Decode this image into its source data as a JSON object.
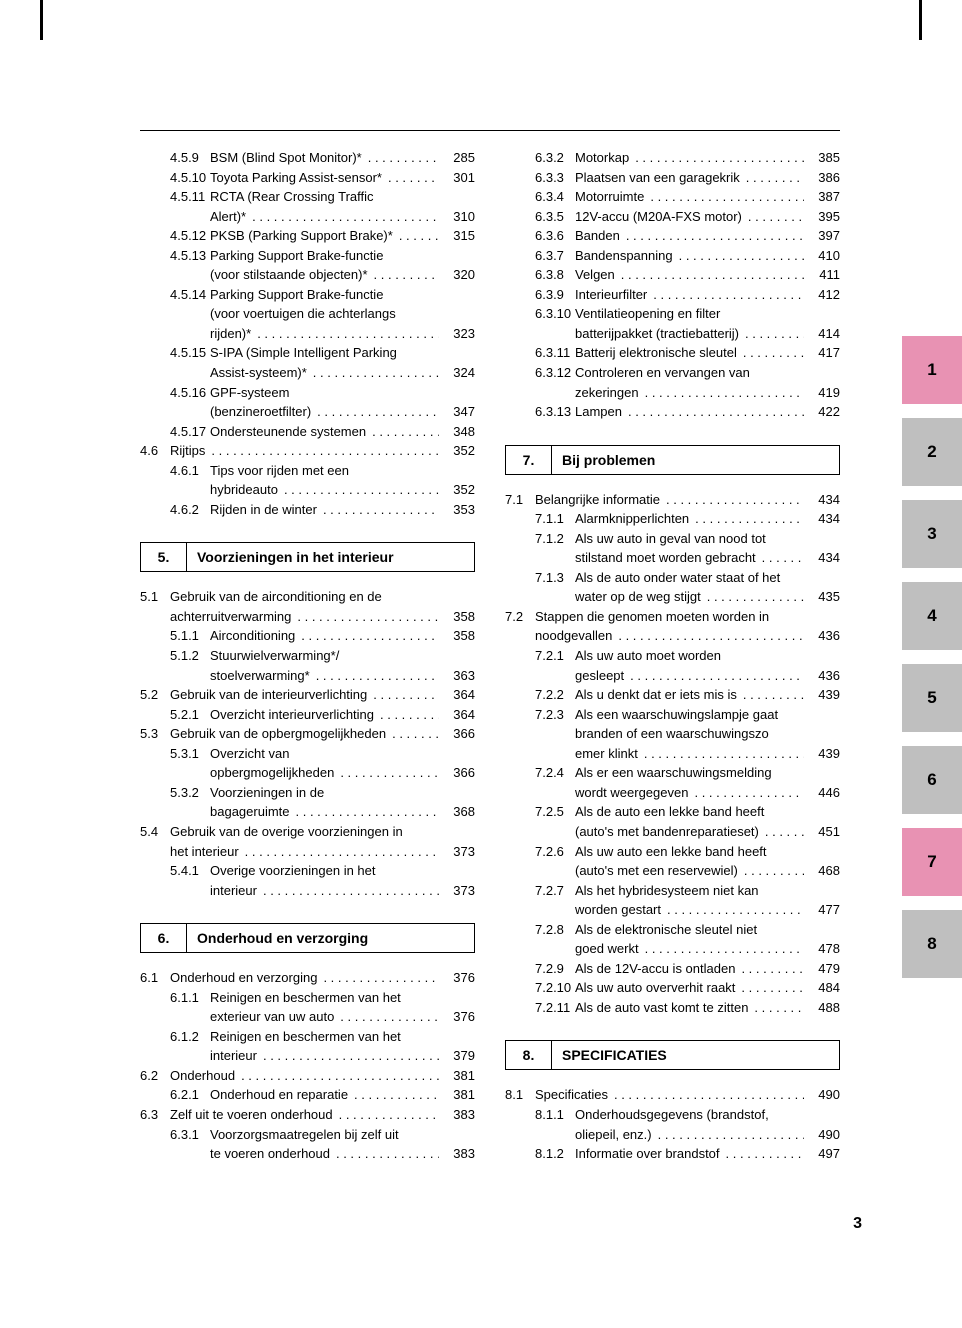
{
  "page_number": "3",
  "tabs": [
    {
      "n": "1",
      "c": "pink"
    },
    {
      "n": "2",
      "c": "gray"
    },
    {
      "n": "3",
      "c": "gray"
    },
    {
      "n": "4",
      "c": "gray"
    },
    {
      "n": "5",
      "c": "gray"
    },
    {
      "n": "6",
      "c": "gray"
    },
    {
      "n": "7",
      "c": "pink"
    },
    {
      "n": "8",
      "c": "gray"
    }
  ],
  "left": [
    {
      "t": "l3",
      "n": "4.5.9",
      "x": "BSM (Blind Spot Monitor)*",
      "p": "285"
    },
    {
      "t": "l3",
      "n": "4.5.10",
      "x": "Toyota Parking Assist-sensor*",
      "p": "301"
    },
    {
      "t": "l3",
      "n": "4.5.11",
      "x": "RCTA (Rear Crossing Traffic",
      "p": ""
    },
    {
      "t": "cont",
      "x": "Alert)*",
      "p": "310"
    },
    {
      "t": "l3",
      "n": "4.5.12",
      "x": "PKSB (Parking Support Brake)*",
      "p": "315"
    },
    {
      "t": "l3",
      "n": "4.5.13",
      "x": "Parking Support Brake-functie",
      "p": ""
    },
    {
      "t": "cont",
      "x": "(voor stilstaande objecten)*",
      "p": "320"
    },
    {
      "t": "l3",
      "n": "4.5.14",
      "x": "Parking Support Brake-functie",
      "p": ""
    },
    {
      "t": "cont",
      "x": "(voor voertuigen die achterlangs",
      "p": ""
    },
    {
      "t": "cont",
      "x": "rijden)*",
      "p": "323"
    },
    {
      "t": "l3",
      "n": "4.5.15",
      "x": "S-IPA (Simple Intelligent Parking",
      "p": ""
    },
    {
      "t": "cont",
      "x": "Assist-systeem)*",
      "p": "324"
    },
    {
      "t": "l3",
      "n": "4.5.16",
      "x": "GPF-systeem",
      "p": ""
    },
    {
      "t": "cont",
      "x": "(benzineroetfilter)",
      "p": "347"
    },
    {
      "t": "l3",
      "n": "4.5.17",
      "x": "Ondersteunende systemen",
      "p": "348"
    },
    {
      "t": "l1",
      "n": "4.6",
      "x": "Rijtips",
      "p": "352"
    },
    {
      "t": "l3",
      "n": "4.6.1",
      "x": "Tips voor rijden met een",
      "p": ""
    },
    {
      "t": "cont",
      "x": "hybrideauto",
      "p": "352"
    },
    {
      "t": "l3",
      "n": "4.6.2",
      "x": "Rijden in de winter",
      "p": "353"
    },
    {
      "t": "hdr",
      "n": "5.",
      "x": "Voorzieningen in het interieur"
    },
    {
      "t": "l1",
      "n": "5.1",
      "x": "Gebruik van de airconditioning en de",
      "p": ""
    },
    {
      "t": "contL1",
      "x": "achterruitverwarming",
      "p": "358"
    },
    {
      "t": "l3",
      "n": "5.1.1",
      "x": "Airconditioning",
      "p": "358"
    },
    {
      "t": "l3",
      "n": "5.1.2",
      "x": "Stuurwielverwarming*/",
      "p": ""
    },
    {
      "t": "cont",
      "x": "stoelverwarming*",
      "p": "363"
    },
    {
      "t": "l1",
      "n": "5.2",
      "x": "Gebruik van de interieurverlichting",
      "p": "364"
    },
    {
      "t": "l3",
      "n": "5.2.1",
      "x": "Overzicht interieurverlichting",
      "p": "364"
    },
    {
      "t": "l1",
      "n": "5.3",
      "x": "Gebruik van de opbergmogelijkheden",
      "p": "366"
    },
    {
      "t": "l3",
      "n": "5.3.1",
      "x": "Overzicht van",
      "p": ""
    },
    {
      "t": "cont",
      "x": "opbergmogelijkheden",
      "p": "366"
    },
    {
      "t": "l3",
      "n": "5.3.2",
      "x": "Voorzieningen in de",
      "p": ""
    },
    {
      "t": "cont",
      "x": "bagageruimte",
      "p": "368"
    },
    {
      "t": "l1",
      "n": "5.4",
      "x": "Gebruik van de overige voorzieningen in",
      "p": ""
    },
    {
      "t": "contL1",
      "x": "het interieur",
      "p": "373"
    },
    {
      "t": "l3",
      "n": "5.4.1",
      "x": "Overige voorzieningen in het",
      "p": ""
    },
    {
      "t": "cont",
      "x": "interieur",
      "p": "373"
    },
    {
      "t": "hdr",
      "n": "6.",
      "x": "Onderhoud en verzorging"
    },
    {
      "t": "l1",
      "n": "6.1",
      "x": "Onderhoud en verzorging",
      "p": "376"
    },
    {
      "t": "l3",
      "n": "6.1.1",
      "x": "Reinigen en beschermen van het",
      "p": ""
    },
    {
      "t": "cont",
      "x": "exterieur van uw auto",
      "p": "376"
    },
    {
      "t": "l3",
      "n": "6.1.2",
      "x": "Reinigen en beschermen van het",
      "p": ""
    },
    {
      "t": "cont",
      "x": "interieur",
      "p": "379"
    },
    {
      "t": "l1",
      "n": "6.2",
      "x": "Onderhoud",
      "p": "381"
    },
    {
      "t": "l3",
      "n": "6.2.1",
      "x": "Onderhoud en reparatie",
      "p": "381"
    },
    {
      "t": "l1",
      "n": "6.3",
      "x": "Zelf uit te voeren onderhoud",
      "p": "383"
    },
    {
      "t": "l3",
      "n": "6.3.1",
      "x": "Voorzorgsmaatregelen bij zelf uit",
      "p": ""
    },
    {
      "t": "cont",
      "x": "te voeren onderhoud",
      "p": "383"
    }
  ],
  "right": [
    {
      "t": "l3",
      "n": "6.3.2",
      "x": "Motorkap",
      "p": "385"
    },
    {
      "t": "l3",
      "n": "6.3.3",
      "x": "Plaatsen van een garagekrik",
      "p": "386"
    },
    {
      "t": "l3",
      "n": "6.3.4",
      "x": "Motorruimte",
      "p": "387"
    },
    {
      "t": "l3",
      "n": "6.3.5",
      "x": "12V-accu (M20A-FXS motor)",
      "p": "395"
    },
    {
      "t": "l3",
      "n": "6.3.6",
      "x": "Banden",
      "p": "397"
    },
    {
      "t": "l3",
      "n": "6.3.7",
      "x": "Bandenspanning",
      "p": "410"
    },
    {
      "t": "l3",
      "n": "6.3.8",
      "x": "Velgen",
      "p": "411"
    },
    {
      "t": "l3",
      "n": "6.3.9",
      "x": "Interieurfilter",
      "p": "412"
    },
    {
      "t": "l3",
      "n": "6.3.10",
      "x": "Ventilatieopening en filter",
      "p": ""
    },
    {
      "t": "cont",
      "x": "batterijpakket (tractiebatterij)",
      "p": "414"
    },
    {
      "t": "l3",
      "n": "6.3.11",
      "x": "Batterij elektronische sleutel",
      "p": "417"
    },
    {
      "t": "l3",
      "n": "6.3.12",
      "x": "Controleren en vervangen van",
      "p": ""
    },
    {
      "t": "cont",
      "x": "zekeringen",
      "p": "419"
    },
    {
      "t": "l3",
      "n": "6.3.13",
      "x": "Lampen",
      "p": "422"
    },
    {
      "t": "hdr",
      "n": "7.",
      "x": "Bij problemen"
    },
    {
      "t": "l1",
      "n": "7.1",
      "x": "Belangrijke informatie",
      "p": "434"
    },
    {
      "t": "l3",
      "n": "7.1.1",
      "x": "Alarmknipperlichten",
      "p": "434"
    },
    {
      "t": "l3",
      "n": "7.1.2",
      "x": "Als uw auto in geval van nood tot",
      "p": ""
    },
    {
      "t": "cont",
      "x": "stilstand moet worden gebracht",
      "p": "434"
    },
    {
      "t": "l3",
      "n": "7.1.3",
      "x": "Als de auto onder water staat of het",
      "p": ""
    },
    {
      "t": "cont",
      "x": "water op de weg stijgt",
      "p": "435"
    },
    {
      "t": "l1",
      "n": "7.2",
      "x": "Stappen die genomen moeten worden in",
      "p": ""
    },
    {
      "t": "contL1",
      "x": "noodgevallen",
      "p": "436"
    },
    {
      "t": "l3",
      "n": "7.2.1",
      "x": "Als uw auto moet worden",
      "p": ""
    },
    {
      "t": "cont",
      "x": "gesleept",
      "p": "436"
    },
    {
      "t": "l3",
      "n": "7.2.2",
      "x": "Als u denkt dat er iets mis is",
      "p": "439"
    },
    {
      "t": "l3",
      "n": "7.2.3",
      "x": "Als een waarschuwingslampje gaat",
      "p": ""
    },
    {
      "t": "cont",
      "x": "branden of een waarschuwingszo",
      "p": ""
    },
    {
      "t": "cont",
      "x": "emer klinkt",
      "p": "439"
    },
    {
      "t": "l3",
      "n": "7.2.4",
      "x": "Als er een waarschuwingsmelding",
      "p": ""
    },
    {
      "t": "cont",
      "x": "wordt weergegeven",
      "p": "446"
    },
    {
      "t": "l3",
      "n": "7.2.5",
      "x": "Als de auto een lekke band heeft",
      "p": ""
    },
    {
      "t": "cont",
      "x": "(auto's met bandenreparatieset)",
      "p": "451"
    },
    {
      "t": "l3",
      "n": "7.2.6",
      "x": "Als uw auto een lekke band heeft",
      "p": ""
    },
    {
      "t": "cont",
      "x": "(auto's met een reservewiel)",
      "p": "468"
    },
    {
      "t": "l3",
      "n": "7.2.7",
      "x": "Als het hybridesysteem niet kan",
      "p": ""
    },
    {
      "t": "cont",
      "x": "worden gestart",
      "p": "477"
    },
    {
      "t": "l3",
      "n": "7.2.8",
      "x": "Als de elektronische sleutel niet",
      "p": ""
    },
    {
      "t": "cont",
      "x": "goed werkt",
      "p": "478"
    },
    {
      "t": "l3",
      "n": "7.2.9",
      "x": "Als de 12V-accu is ontladen",
      "p": "479"
    },
    {
      "t": "l3",
      "n": "7.2.10",
      "x": "Als uw auto oververhit raakt",
      "p": "484"
    },
    {
      "t": "l3",
      "n": "7.2.11",
      "x": "Als de auto vast komt te zitten",
      "p": "488"
    },
    {
      "t": "hdr",
      "n": "8.",
      "x": "SPECIFICATIES"
    },
    {
      "t": "l1",
      "n": "8.1",
      "x": "Specificaties",
      "p": "490"
    },
    {
      "t": "l3",
      "n": "8.1.1",
      "x": "Onderhoudsgegevens (brandstof,",
      "p": ""
    },
    {
      "t": "cont",
      "x": "oliepeil, enz.)",
      "p": "490"
    },
    {
      "t": "l3",
      "n": "8.1.2",
      "x": "Informatie over brandstof",
      "p": "497"
    }
  ]
}
